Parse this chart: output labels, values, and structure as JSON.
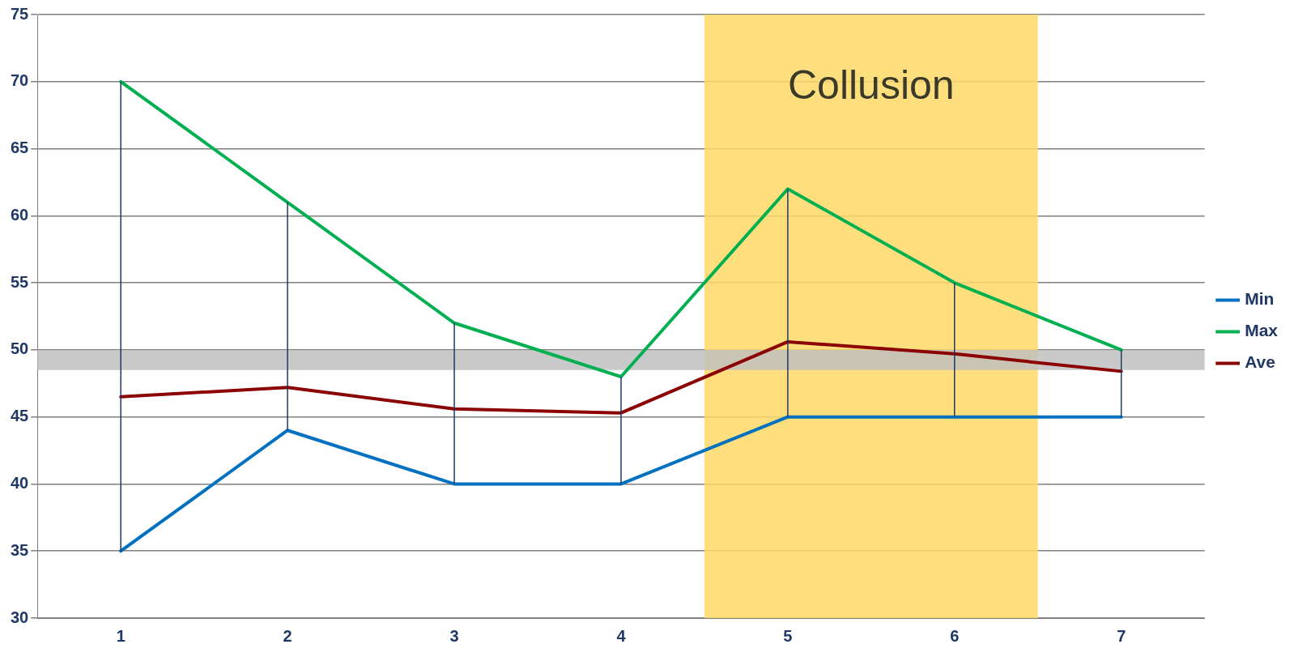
{
  "chart_data": {
    "type": "line",
    "x": [
      1,
      2,
      3,
      4,
      5,
      6,
      7
    ],
    "xlim": [
      0.5,
      7.5
    ],
    "xticks": [
      1,
      2,
      3,
      4,
      5,
      6,
      7
    ],
    "ylim": [
      30,
      75
    ],
    "yticks": [
      30,
      35,
      40,
      45,
      50,
      55,
      60,
      65,
      70,
      75
    ],
    "grid": "y",
    "legend": "right",
    "marker": "none",
    "series": [
      {
        "name": "Min",
        "color": "#0070c0",
        "values": [
          35,
          44,
          40,
          40,
          45,
          45,
          45
        ],
        "errors": [
          [
            35,
            70
          ],
          [
            44,
            61
          ],
          [
            40,
            52
          ],
          [
            40,
            48
          ],
          [
            45,
            62
          ],
          [
            45,
            55
          ],
          [
            45,
            50
          ]
        ]
      },
      {
        "name": "Max",
        "color": "#00b050",
        "values": [
          70,
          61,
          52,
          48,
          62,
          55,
          50
        ]
      },
      {
        "name": "Ave",
        "color": "#8b0000",
        "values": [
          46.5,
          47.2,
          45.6,
          45.3,
          50.6,
          49.7,
          48.4
        ]
      }
    ],
    "bands": [
      {
        "axis": "x",
        "from": 4.5,
        "to": 6.5,
        "label": "Collusion",
        "color": "#ffd966"
      },
      {
        "axis": "y",
        "from": 48.5,
        "to": 50,
        "color": "#bfbfbf"
      }
    ]
  }
}
